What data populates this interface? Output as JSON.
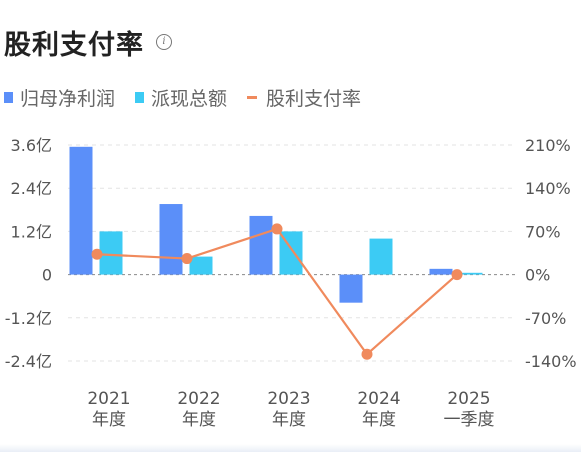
{
  "header": {
    "title": "股利支付率",
    "info_icon": "info-icon"
  },
  "legend": [
    {
      "label": "归母净利润",
      "color": "#5b8ff9",
      "shape": "bar"
    },
    {
      "label": "派现总额",
      "color": "#3ccbf4",
      "shape": "bar"
    },
    {
      "label": "股利支付率",
      "color": "#f08a5d",
      "shape": "line"
    }
  ],
  "chart_data": {
    "type": "bar",
    "categories": [
      [
        "2021",
        "年度"
      ],
      [
        "2022",
        "年度"
      ],
      [
        "2023",
        "年度"
      ],
      [
        "2024",
        "年度"
      ],
      [
        "2025",
        "一季度"
      ]
    ],
    "left_axis": {
      "ticks": [
        3.6,
        2.4,
        1.2,
        0,
        -1.2,
        -2.4
      ],
      "tick_labels": [
        "3.6亿",
        "2.4亿",
        "1.2亿",
        "0",
        "-1.2亿",
        "-2.4亿"
      ],
      "range": [
        -2.4,
        3.6
      ]
    },
    "right_axis": {
      "ticks": [
        210,
        140,
        70,
        0,
        -70,
        -140
      ],
      "tick_labels": [
        "210%",
        "140%",
        "70%",
        "0%",
        "-70%",
        "-140%"
      ],
      "range": [
        -140,
        210
      ]
    },
    "series": [
      {
        "name": "归母净利润",
        "type": "bar",
        "axis": "left",
        "color": "#5b8ff9",
        "values": [
          3.55,
          1.96,
          1.63,
          -0.78,
          0.16
        ]
      },
      {
        "name": "派现总额",
        "type": "bar",
        "axis": "left",
        "color": "#3ccbf4",
        "values": [
          1.2,
          0.5,
          1.2,
          1.0,
          0.05
        ]
      },
      {
        "name": "股利支付率",
        "type": "line",
        "axis": "right",
        "color": "#f08a5d",
        "values": [
          33,
          26,
          74,
          -129,
          0
        ]
      }
    ],
    "grid": true,
    "legend_position": "top-left"
  }
}
